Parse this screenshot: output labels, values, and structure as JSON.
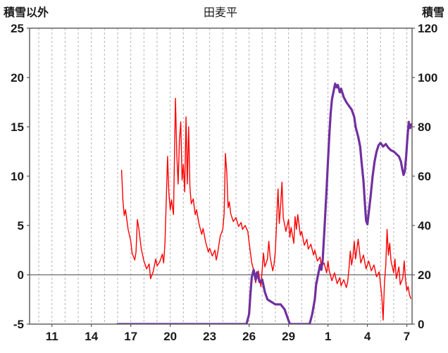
{
  "page": {
    "background": "#ffffff"
  },
  "chart_data": {
    "type": "line",
    "title": "田麦平",
    "left_axis": {
      "label": "積雪以外",
      "min": -5,
      "max": 25,
      "ticks": [
        25,
        20,
        15,
        10,
        5,
        0,
        -5
      ]
    },
    "right_axis": {
      "label": "積雪",
      "min": 0,
      "max": 120,
      "ticks": [
        120,
        100,
        80,
        60,
        40,
        20,
        0
      ]
    },
    "x_axis": {
      "min": 9.3,
      "max": 38.4,
      "gridline_days": [
        10,
        11,
        12,
        13,
        14,
        15,
        16,
        17,
        18,
        19,
        20,
        21,
        22,
        23,
        24,
        25,
        26,
        27,
        28,
        29,
        30,
        31,
        32,
        33,
        34,
        35,
        36,
        37,
        38
      ],
      "tick_positions": [
        11,
        14,
        17,
        20,
        23,
        26,
        29,
        32,
        35,
        38
      ],
      "tick_labels": [
        "11",
        "14",
        "17",
        "20",
        "23",
        "26",
        "29",
        "1",
        "4",
        "7"
      ]
    },
    "grid": {
      "vertical_dashed": true,
      "zero_line": true,
      "zero_line_color": "#808080",
      "gridline_color": "#b3b3b3",
      "frame_color": "#595959"
    },
    "series": [
      {
        "name": "積雪以外",
        "axis": "left",
        "color": "#ff0000",
        "width": 1.4,
        "points": [
          [
            16.3,
            10.6
          ],
          [
            16.4,
            7.5
          ],
          [
            16.5,
            6.0
          ],
          [
            16.6,
            6.6
          ],
          [
            16.8,
            4.6
          ],
          [
            17.0,
            3.4
          ],
          [
            17.1,
            2.2
          ],
          [
            17.3,
            1.5
          ],
          [
            17.4,
            2.3
          ],
          [
            17.5,
            5.6
          ],
          [
            17.6,
            4.8
          ],
          [
            17.8,
            2.6
          ],
          [
            18.0,
            1.4
          ],
          [
            18.2,
            0.6
          ],
          [
            18.4,
            1.1
          ],
          [
            18.5,
            -0.4
          ],
          [
            18.7,
            0.3
          ],
          [
            18.9,
            1.6
          ],
          [
            19.0,
            0.9
          ],
          [
            19.2,
            1.3
          ],
          [
            19.4,
            2.1
          ],
          [
            19.5,
            1.2
          ],
          [
            19.6,
            3.2
          ],
          [
            19.8,
            12.0
          ],
          [
            19.9,
            8.2
          ],
          [
            20.0,
            6.6
          ],
          [
            20.1,
            7.6
          ],
          [
            20.25,
            6.1
          ],
          [
            20.4,
            17.9
          ],
          [
            20.5,
            12.1
          ],
          [
            20.6,
            9.2
          ],
          [
            20.7,
            13.6
          ],
          [
            20.8,
            15.5
          ],
          [
            20.9,
            9.6
          ],
          [
            21.0,
            11.2
          ],
          [
            21.1,
            8.4
          ],
          [
            21.2,
            16.0
          ],
          [
            21.3,
            9.2
          ],
          [
            21.4,
            15.0
          ],
          [
            21.5,
            8.9
          ],
          [
            21.6,
            7.2
          ],
          [
            21.75,
            7.7
          ],
          [
            21.9,
            6.1
          ],
          [
            22.0,
            6.6
          ],
          [
            22.2,
            5.1
          ],
          [
            22.4,
            4.1
          ],
          [
            22.5,
            4.7
          ],
          [
            22.7,
            3.3
          ],
          [
            22.9,
            2.3
          ],
          [
            23.0,
            2.7
          ],
          [
            23.2,
            1.9
          ],
          [
            23.4,
            2.5
          ],
          [
            23.5,
            1.5
          ],
          [
            23.6,
            2.1
          ],
          [
            23.8,
            3.9
          ],
          [
            24.0,
            4.6
          ],
          [
            24.1,
            6.2
          ],
          [
            24.2,
            12.3
          ],
          [
            24.3,
            10.4
          ],
          [
            24.4,
            6.8
          ],
          [
            24.5,
            7.4
          ],
          [
            24.6,
            6.2
          ],
          [
            24.8,
            5.4
          ],
          [
            25.0,
            5.8
          ],
          [
            25.2,
            4.9
          ],
          [
            25.4,
            5.3
          ],
          [
            25.5,
            4.6
          ],
          [
            25.7,
            5.0
          ],
          [
            25.9,
            4.4
          ],
          [
            26.0,
            3.3
          ],
          [
            26.2,
            1.2
          ],
          [
            26.4,
            0.2
          ],
          [
            26.5,
            -0.8
          ],
          [
            26.7,
            0.4
          ],
          [
            26.9,
            -1.2
          ],
          [
            27.0,
            0.6
          ],
          [
            27.1,
            2.2
          ],
          [
            27.2,
            0.8
          ],
          [
            27.4,
            1.6
          ],
          [
            27.5,
            3.4
          ],
          [
            27.6,
            1.8
          ],
          [
            27.8,
            0.4
          ],
          [
            27.9,
            1.1
          ],
          [
            28.0,
            2.4
          ],
          [
            28.2,
            8.7
          ],
          [
            28.3,
            5.2
          ],
          [
            28.4,
            7.0
          ],
          [
            28.5,
            9.4
          ],
          [
            28.6,
            5.8
          ],
          [
            28.8,
            4.4
          ],
          [
            29.0,
            5.6
          ],
          [
            29.1,
            3.8
          ],
          [
            29.2,
            4.8
          ],
          [
            29.4,
            3.2
          ],
          [
            29.5,
            5.9
          ],
          [
            29.6,
            4.6
          ],
          [
            29.7,
            6.1
          ],
          [
            29.9,
            4.0
          ],
          [
            30.0,
            4.4
          ],
          [
            30.2,
            3.0
          ],
          [
            30.4,
            3.6
          ],
          [
            30.5,
            2.6
          ],
          [
            30.7,
            3.1
          ],
          [
            30.9,
            2.0
          ],
          [
            31.0,
            2.5
          ],
          [
            31.2,
            1.4
          ],
          [
            31.4,
            1.8
          ],
          [
            31.5,
            0.8
          ],
          [
            31.7,
            1.2
          ],
          [
            31.9,
            0.2
          ],
          [
            32.0,
            1.4
          ],
          [
            32.1,
            0.4
          ],
          [
            32.3,
            -0.6
          ],
          [
            32.5,
            0.2
          ],
          [
            32.7,
            -0.9
          ],
          [
            32.9,
            -0.3
          ],
          [
            33.0,
            -1.1
          ],
          [
            33.2,
            -0.5
          ],
          [
            33.4,
            -1.3
          ],
          [
            33.5,
            -0.7
          ],
          [
            33.6,
            0.6
          ],
          [
            33.7,
            2.4
          ],
          [
            33.8,
            1.0
          ],
          [
            33.9,
            1.8
          ],
          [
            34.0,
            3.4
          ],
          [
            34.1,
            1.6
          ],
          [
            34.2,
            2.6
          ],
          [
            34.3,
            3.6
          ],
          [
            34.5,
            1.2
          ],
          [
            34.7,
            2.0
          ],
          [
            34.9,
            0.6
          ],
          [
            35.1,
            1.4
          ],
          [
            35.3,
            0.4
          ],
          [
            35.5,
            1.0
          ],
          [
            35.7,
            -0.2
          ],
          [
            35.9,
            0.3
          ],
          [
            36.0,
            -1.0
          ],
          [
            36.1,
            -2.2
          ],
          [
            36.2,
            -4.6
          ],
          [
            36.3,
            -0.8
          ],
          [
            36.4,
            1.0
          ],
          [
            36.5,
            4.6
          ],
          [
            36.6,
            2.0
          ],
          [
            36.7,
            3.2
          ],
          [
            36.8,
            1.4
          ],
          [
            37.0,
            0.2
          ],
          [
            37.1,
            1.6
          ],
          [
            37.2,
            -0.4
          ],
          [
            37.4,
            0.8
          ],
          [
            37.5,
            -1.0
          ],
          [
            37.7,
            -0.3
          ],
          [
            37.8,
            1.4
          ],
          [
            37.9,
            -0.5
          ],
          [
            38.0,
            -1.6
          ],
          [
            38.1,
            -1.2
          ],
          [
            38.2,
            -2.0
          ],
          [
            38.3,
            -2.4
          ]
        ]
      },
      {
        "name": "積雪",
        "axis": "right",
        "color": "#7030a0",
        "width": 3.2,
        "points": [
          [
            16.0,
            0
          ],
          [
            25.8,
            0
          ],
          [
            26.0,
            4
          ],
          [
            26.1,
            12
          ],
          [
            26.2,
            19
          ],
          [
            26.35,
            22
          ],
          [
            26.5,
            18
          ],
          [
            26.6,
            21
          ],
          [
            26.8,
            17
          ],
          [
            27.0,
            18
          ],
          [
            27.2,
            13
          ],
          [
            27.4,
            10
          ],
          [
            27.7,
            9
          ],
          [
            28.0,
            8
          ],
          [
            28.4,
            8
          ],
          [
            28.7,
            6
          ],
          [
            28.9,
            3
          ],
          [
            29.1,
            0
          ],
          [
            30.6,
            0
          ],
          [
            30.8,
            4
          ],
          [
            31.0,
            10
          ],
          [
            31.1,
            16
          ],
          [
            31.25,
            20
          ],
          [
            31.4,
            24
          ],
          [
            31.5,
            22
          ],
          [
            31.6,
            26
          ],
          [
            31.75,
            40
          ],
          [
            31.9,
            55
          ],
          [
            32.0,
            66
          ],
          [
            32.1,
            76
          ],
          [
            32.2,
            85
          ],
          [
            32.3,
            91
          ],
          [
            32.45,
            95
          ],
          [
            32.55,
            97.5
          ],
          [
            32.65,
            96
          ],
          [
            32.75,
            97
          ],
          [
            32.9,
            94
          ],
          [
            33.0,
            95.5
          ],
          [
            33.2,
            92
          ],
          [
            33.4,
            90
          ],
          [
            33.6,
            88.5
          ],
          [
            33.8,
            87
          ],
          [
            34.0,
            84
          ],
          [
            34.1,
            80
          ],
          [
            34.3,
            76
          ],
          [
            34.45,
            72
          ],
          [
            34.55,
            66
          ],
          [
            34.7,
            58
          ],
          [
            34.8,
            50
          ],
          [
            34.9,
            42
          ],
          [
            35.0,
            40.5
          ],
          [
            35.1,
            45
          ],
          [
            35.25,
            52
          ],
          [
            35.4,
            60
          ],
          [
            35.55,
            66
          ],
          [
            35.7,
            70
          ],
          [
            35.85,
            72.5
          ],
          [
            36.0,
            73.5
          ],
          [
            36.2,
            72
          ],
          [
            36.4,
            73
          ],
          [
            36.6,
            71.5
          ],
          [
            36.8,
            70.5
          ],
          [
            37.0,
            70
          ],
          [
            37.2,
            69
          ],
          [
            37.4,
            68
          ],
          [
            37.55,
            66
          ],
          [
            37.65,
            63
          ],
          [
            37.75,
            60.5
          ],
          [
            37.85,
            62
          ],
          [
            37.95,
            68
          ],
          [
            38.05,
            76
          ],
          [
            38.15,
            82
          ],
          [
            38.25,
            79.5
          ],
          [
            38.35,
            81
          ]
        ]
      }
    ]
  }
}
